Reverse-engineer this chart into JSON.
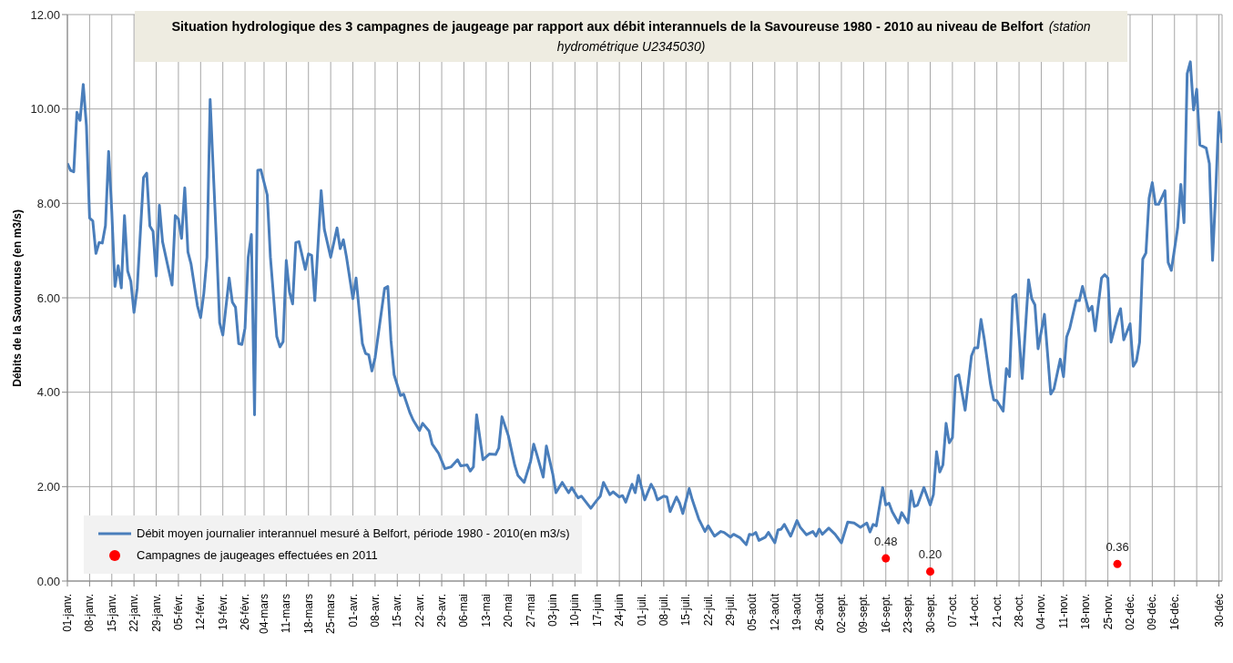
{
  "chart_data": {
    "type": "line",
    "title": "Situation hydrologique des 3 campagnes de jaugeage par rapport aux débit interannuels de la Savoureuse 1980 - 2010 au niveau de Belfort",
    "subtitle": "(station hydrométrique U2345030)",
    "ylabel": "Débits de la Savoureuse (en m3/s)",
    "xlim": [
      "--01-01",
      "--12-31"
    ],
    "xticks": [
      {
        "value": "--01-01",
        "label": "01-janv."
      },
      {
        "value": "--01-08",
        "label": "08-janv."
      },
      {
        "value": "--01-15",
        "label": "15-janv."
      },
      {
        "value": "--01-22",
        "label": "22-janv."
      },
      {
        "value": "--01-29",
        "label": "29-janv."
      },
      {
        "value": "--02-05",
        "label": "05-févr."
      },
      {
        "value": "--02-12",
        "label": "12-févr."
      },
      {
        "value": "--02-19",
        "label": "19-févr."
      },
      {
        "value": "--02-26",
        "label": "26-févr."
      },
      {
        "value": "--03-04",
        "label": "04-mars"
      },
      {
        "value": "--03-11",
        "label": "11-mars"
      },
      {
        "value": "--03-18",
        "label": "18-mars"
      },
      {
        "value": "--03-25",
        "label": "25-mars"
      },
      {
        "value": "--04-01",
        "label": "01-avr."
      },
      {
        "value": "--04-08",
        "label": "08-avr."
      },
      {
        "value": "--04-15",
        "label": "15-avr."
      },
      {
        "value": "--04-22",
        "label": "22-avr."
      },
      {
        "value": "--04-29",
        "label": "29-avr."
      },
      {
        "value": "--05-06",
        "label": "06-mai"
      },
      {
        "value": "--05-13",
        "label": "13-mai"
      },
      {
        "value": "--05-20",
        "label": "20-mai"
      },
      {
        "value": "--05-27",
        "label": "27-mai"
      },
      {
        "value": "--06-03",
        "label": "03-juin"
      },
      {
        "value": "--06-10",
        "label": "10-juin"
      },
      {
        "value": "--06-17",
        "label": "17-juin"
      },
      {
        "value": "--06-24",
        "label": "24-juin"
      },
      {
        "value": "--07-01",
        "label": "01-juil."
      },
      {
        "value": "--07-08",
        "label": "08-juil."
      },
      {
        "value": "--07-15",
        "label": "15-juil."
      },
      {
        "value": "--07-22",
        "label": "22-juil."
      },
      {
        "value": "--07-29",
        "label": "29-juil."
      },
      {
        "value": "--08-05",
        "label": "05-août"
      },
      {
        "value": "--08-12",
        "label": "12-août"
      },
      {
        "value": "--08-19",
        "label": "19-août"
      },
      {
        "value": "--08-26",
        "label": "26-août"
      },
      {
        "value": "--09-02",
        "label": "02-sept."
      },
      {
        "value": "--09-09",
        "label": "09-sept."
      },
      {
        "value": "--09-16",
        "label": "16-sept."
      },
      {
        "value": "--09-23",
        "label": "23-sept."
      },
      {
        "value": "--09-30",
        "label": "30-sept."
      },
      {
        "value": "--10-07",
        "label": "07-oct."
      },
      {
        "value": "--10-14",
        "label": "14-oct."
      },
      {
        "value": "--10-21",
        "label": "21-oct."
      },
      {
        "value": "--10-28",
        "label": "28-oct."
      },
      {
        "value": "--11-04",
        "label": "04-nov."
      },
      {
        "value": "--11-11",
        "label": "11-nov."
      },
      {
        "value": "--11-18",
        "label": "18-nov."
      },
      {
        "value": "--11-25",
        "label": "25-nov."
      },
      {
        "value": "--12-02",
        "label": "02-déc."
      },
      {
        "value": "--12-09",
        "label": "09-déc."
      },
      {
        "value": "--12-16",
        "label": "16-déc."
      },
      {
        "value": "--12-23",
        "label": null
      },
      {
        "value": "--12-30",
        "label": "30-déc"
      }
    ],
    "ylim": [
      0,
      12
    ],
    "yticks": [
      {
        "value": 0,
        "label": "0.00"
      },
      {
        "value": 2,
        "label": "2.00"
      },
      {
        "value": 4,
        "label": "4.00"
      },
      {
        "value": 6,
        "label": "6.00"
      },
      {
        "value": 8,
        "label": "8.00"
      },
      {
        "value": 10,
        "label": "10.00"
      },
      {
        "value": 12,
        "label": "12.00"
      }
    ],
    "grid": true,
    "legend": "bottom left",
    "series": [
      {
        "name": "Débit moyen journalier interannuel mesuré à Belfort, période 1980 - 2010(en m3/s)",
        "color": "#4a7ebb",
        "marker": "none",
        "line_style": "solid",
        "x": [
          "--01-01",
          "--01-02",
          "--01-03",
          "--01-04",
          "--01-05",
          "--01-06",
          "--01-07",
          "--01-08",
          "--01-09",
          "--01-10",
          "--01-11",
          "--01-12",
          "--01-13",
          "--01-14",
          "--01-15",
          "--01-16",
          "--01-17",
          "--01-18",
          "--01-19",
          "--01-20",
          "--01-21",
          "--01-22",
          "--01-23",
          "--01-25",
          "--01-26",
          "--01-27",
          "--01-28",
          "--01-29",
          "--01-30",
          "--01-31",
          "--02-02",
          "--02-03",
          "--02-04",
          "--02-05",
          "--02-06",
          "--02-07",
          "--02-08",
          "--02-09",
          "--02-11",
          "--02-12",
          "--02-13",
          "--02-14",
          "--02-15",
          "--02-17",
          "--02-18",
          "--02-19",
          "--02-21",
          "--02-22",
          "--02-23",
          "--02-24",
          "--02-25",
          "--02-26",
          "--02-27",
          "--02-28",
          "--03-01",
          "--03-02",
          "--03-03",
          "--03-05",
          "--03-06",
          "--03-08",
          "--03-09",
          "--03-10",
          "--03-11",
          "--03-12",
          "--03-13",
          "--03-14",
          "--03-15",
          "--03-17",
          "--03-18",
          "--03-19",
          "--03-20",
          "--03-22",
          "--03-23",
          "--03-25",
          "--03-27",
          "--03-28",
          "--03-29",
          "--03-30",
          "--04-01",
          "--04-02",
          "--04-04",
          "--04-05",
          "--04-06",
          "--04-07",
          "--04-08",
          "--04-11",
          "--04-12",
          "--04-13",
          "--04-14",
          "--04-16",
          "--04-17",
          "--04-19",
          "--04-20",
          "--04-22",
          "--04-23",
          "--04-25",
          "--04-26",
          "--04-28",
          "--04-30",
          "--05-02",
          "--05-04",
          "--05-05",
          "--05-07",
          "--05-08",
          "--05-09",
          "--05-10",
          "--05-12",
          "--05-14",
          "--05-16",
          "--05-17",
          "--05-18",
          "--05-20",
          "--05-22",
          "--05-23",
          "--05-25",
          "--05-27",
          "--05-28",
          "--05-29",
          "--05-31",
          "--06-01",
          "--06-03",
          "--06-04",
          "--06-06",
          "--06-08",
          "--06-09",
          "--06-11",
          "--06-12",
          "--06-15",
          "--06-17",
          "--06-18",
          "--06-19",
          "--06-21",
          "--06-22",
          "--06-24",
          "--06-25",
          "--06-26",
          "--06-28",
          "--06-29",
          "--06-30",
          "--07-02",
          "--07-04",
          "--07-05",
          "--07-06",
          "--07-08",
          "--07-09",
          "--07-10",
          "--07-12",
          "--07-13",
          "--07-14",
          "--07-16",
          "--07-17",
          "--07-19",
          "--07-21",
          "--07-22",
          "--07-24",
          "--07-26",
          "--07-27",
          "--07-29",
          "--07-30",
          "--08-01",
          "--08-03",
          "--08-04",
          "--08-05",
          "--08-06",
          "--08-07",
          "--08-09",
          "--08-10",
          "--08-12",
          "--08-13",
          "--08-14",
          "--08-15",
          "--08-17",
          "--08-19",
          "--08-20",
          "--08-22",
          "--08-24",
          "--08-25",
          "--08-26",
          "--08-27",
          "--08-29",
          "--08-31",
          "--09-02",
          "--09-04",
          "--09-06",
          "--09-08",
          "--09-10",
          "--09-11",
          "--09-12",
          "--09-13",
          "--09-15",
          "--09-16",
          "--09-17",
          "--09-18",
          "--09-20",
          "--09-21",
          "--09-23",
          "--09-24",
          "--09-25",
          "--09-26",
          "--09-28",
          "--09-30",
          "--10-01",
          "--10-02",
          "--10-03",
          "--10-04",
          "--10-05",
          "--10-06",
          "--10-07",
          "--10-08",
          "--10-09",
          "--10-11",
          "--10-13",
          "--10-14",
          "--10-15",
          "--10-16",
          "--10-17",
          "--10-19",
          "--10-20",
          "--10-21",
          "--10-23",
          "--10-24",
          "--10-25",
          "--10-26",
          "--10-27",
          "--10-29",
          "--10-31",
          "--11-01",
          "--11-02",
          "--11-03",
          "--11-05",
          "--11-07",
          "--11-08",
          "--11-10",
          "--11-11",
          "--11-12",
          "--11-13",
          "--11-15",
          "--11-16",
          "--11-17",
          "--11-19",
          "--11-20",
          "--11-21",
          "--11-23",
          "--11-24",
          "--11-25",
          "--11-26",
          "--11-28",
          "--11-29",
          "--11-30",
          "--12-02",
          "--12-03",
          "--12-04",
          "--12-05",
          "--12-06",
          "--12-07",
          "--12-08",
          "--12-09",
          "--12-10",
          "--12-11",
          "--12-13",
          "--12-14",
          "--12-15",
          "--12-17",
          "--12-18",
          "--12-19",
          "--12-20",
          "--12-21",
          "--12-22",
          "--12-23",
          "--12-24",
          "--12-26",
          "--12-27",
          "--12-28",
          "--12-29",
          "--12-30",
          "--12-31"
        ],
        "values": [
          8.85,
          8.7,
          8.67,
          9.93,
          9.76,
          10.52,
          9.65,
          7.69,
          7.63,
          6.94,
          7.17,
          7.16,
          7.53,
          9.1,
          7.82,
          6.24,
          6.68,
          6.21,
          7.74,
          6.57,
          6.35,
          5.69,
          6.2,
          8.55,
          8.64,
          7.52,
          7.41,
          6.46,
          7.96,
          7.19,
          6.57,
          6.27,
          7.74,
          7.67,
          7.26,
          8.33,
          6.97,
          6.71,
          5.83,
          5.58,
          6.09,
          6.86,
          10.2,
          7.16,
          5.47,
          5.21,
          6.42,
          5.91,
          5.8,
          5.03,
          5.01,
          5.36,
          6.86,
          7.34,
          3.52,
          8.7,
          8.71,
          8.18,
          6.86,
          5.18,
          4.96,
          5.07,
          6.79,
          6.13,
          5.87,
          7.17,
          7.19,
          6.6,
          6.93,
          6.9,
          5.94,
          8.27,
          7.45,
          6.86,
          7.48,
          7.04,
          7.23,
          6.86,
          5.98,
          6.42,
          5.03,
          4.82,
          4.79,
          4.45,
          4.73,
          6.2,
          6.24,
          5.1,
          4.37,
          3.93,
          3.96,
          3.56,
          3.41,
          3.19,
          3.34,
          3.18,
          2.9,
          2.71,
          2.38,
          2.42,
          2.57,
          2.44,
          2.46,
          2.33,
          2.42,
          3.52,
          2.57,
          2.69,
          2.68,
          2.82,
          3.48,
          3.08,
          2.46,
          2.24,
          2.09,
          2.53,
          2.9,
          2.68,
          2.2,
          2.86,
          2.27,
          1.87,
          2.09,
          1.87,
          1.98,
          1.76,
          1.8,
          1.54,
          1.72,
          1.8,
          2.09,
          1.83,
          1.89,
          1.78,
          1.81,
          1.67,
          2.05,
          1.87,
          2.24,
          1.72,
          2.05,
          1.93,
          1.72,
          1.8,
          1.78,
          1.47,
          1.78,
          1.65,
          1.43,
          1.96,
          1.72,
          1.32,
          1.05,
          1.17,
          0.95,
          1.05,
          1.03,
          0.93,
          0.99,
          0.92,
          0.77,
          0.99,
          0.98,
          1.03,
          0.86,
          0.93,
          1.03,
          0.81,
          1.08,
          1.1,
          1.2,
          0.95,
          1.28,
          1.14,
          0.98,
          1.05,
          0.95,
          1.1,
          0.99,
          1.12,
          0.99,
          0.81,
          1.25,
          1.23,
          1.14,
          1.23,
          1.04,
          1.2,
          1.17,
          1.98,
          1.61,
          1.65,
          1.47,
          1.23,
          1.45,
          1.23,
          1.91,
          1.58,
          1.61,
          1.98,
          1.61,
          1.83,
          2.74,
          2.31,
          2.46,
          3.34,
          2.93,
          3.04,
          4.33,
          4.37,
          3.62,
          4.77,
          4.94,
          4.94,
          5.54,
          5.14,
          4.18,
          3.84,
          3.82,
          3.6,
          4.5,
          4.33,
          6.02,
          6.07,
          4.29,
          6.38,
          5.98,
          5.85,
          4.92,
          5.65,
          3.96,
          4.07,
          4.7,
          4.33,
          5.17,
          5.36,
          5.94,
          5.94,
          6.24,
          5.72,
          5.82,
          5.3,
          6.42,
          6.49,
          6.42,
          5.06,
          5.58,
          5.77,
          5.11,
          5.45,
          4.55,
          4.66,
          5.06,
          6.82,
          6.95,
          8.11,
          8.44,
          7.98,
          7.98,
          8.27,
          6.75,
          6.58,
          7.48,
          8.4,
          7.59,
          10.75,
          11.0,
          9.98,
          10.42,
          9.24,
          9.17,
          8.84,
          6.79,
          8.25,
          9.93,
          9.28
        ]
      },
      {
        "name": "Campagnes de jaugeages effectuées en 2011",
        "type": "scatter",
        "color": "#ff0000",
        "marker": "circle",
        "x": [
          "--09-16",
          "--09-30",
          "--11-28"
        ],
        "values": [
          0.48,
          0.2,
          0.36
        ],
        "value_labels": [
          "0.48",
          "0.20",
          "0.36"
        ]
      }
    ]
  }
}
